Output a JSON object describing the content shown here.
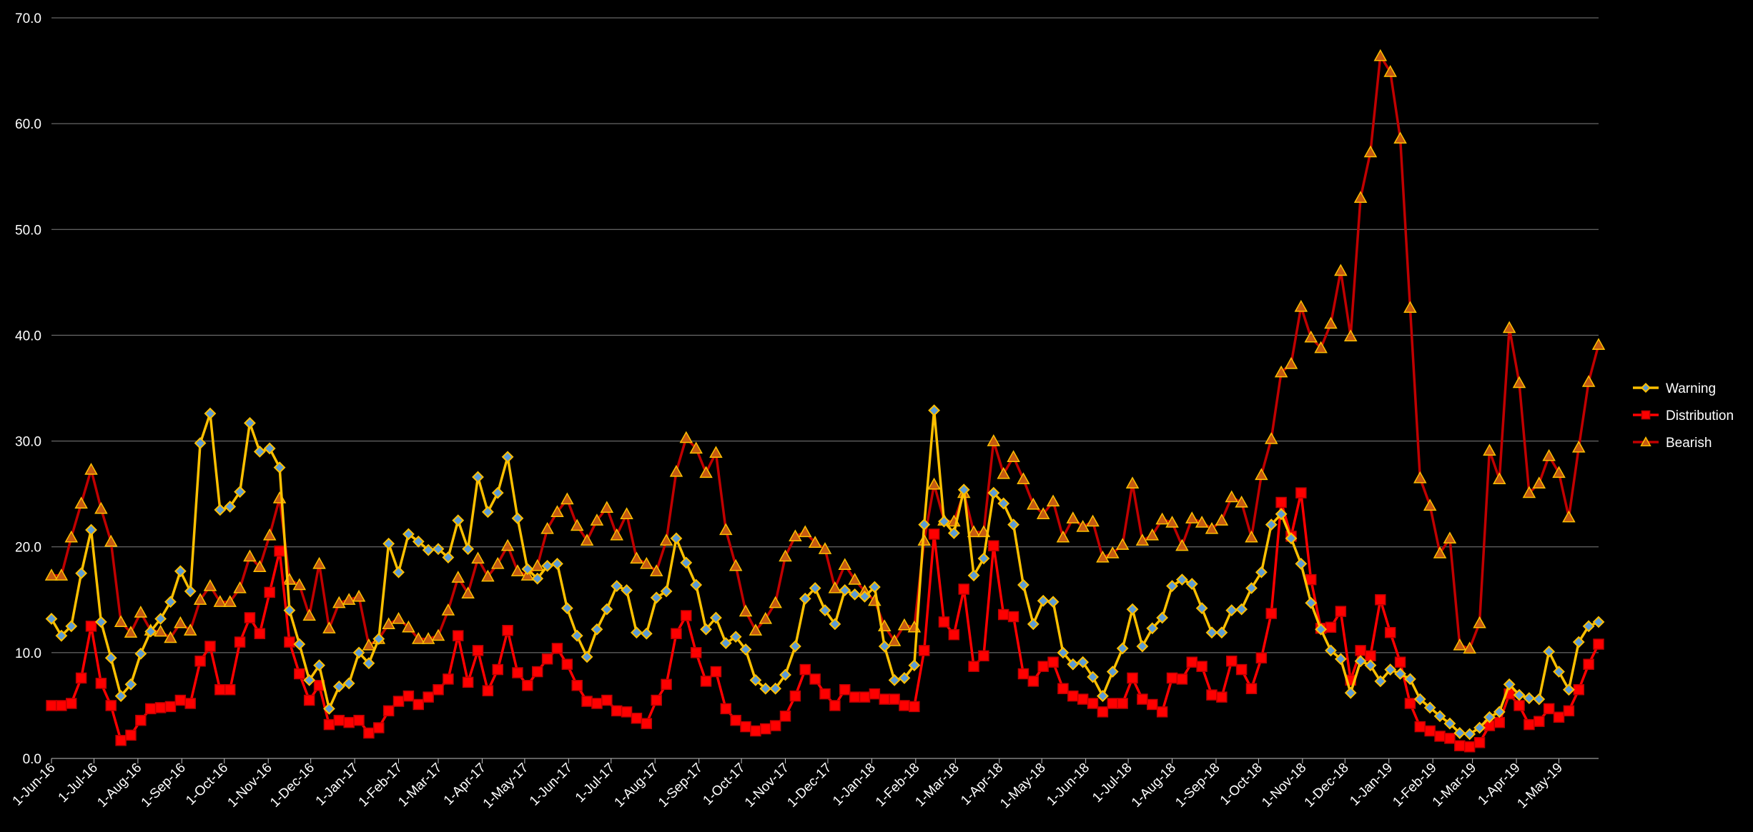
{
  "chart_data": {
    "type": "line",
    "title": "",
    "xlabel": "",
    "ylabel": "",
    "ylim": [
      0,
      70
    ],
    "ytick_labels": [
      "0.0",
      "10.0",
      "20.0",
      "30.0",
      "40.0",
      "50.0",
      "60.0",
      "70.0"
    ],
    "grid": "horizontal",
    "legend_placement": "right",
    "x_start": "2016-06-01",
    "x_step_days": 7,
    "xtick_labels": [
      "1-Jun-16",
      "1-Jul-16",
      "1-Aug-16",
      "1-Sep-16",
      "1-Oct-16",
      "1-Nov-16",
      "1-Dec-16",
      "1-Jan-17",
      "1-Feb-17",
      "1-Mar-17",
      "1-Apr-17",
      "1-May-17",
      "1-Jun-17",
      "1-Jul-17",
      "1-Aug-17",
      "1-Sep-17",
      "1-Oct-17",
      "1-Nov-17",
      "1-Dec-17",
      "1-Jan-18",
      "1-Feb-18",
      "1-Mar-18",
      "1-Apr-18",
      "1-May-18",
      "1-Jun-18",
      "1-Jul-18",
      "1-Aug-18",
      "1-Sep-18",
      "1-Oct-18",
      "1-Nov-18",
      "1-Dec-18",
      "1-Jan-19",
      "1-Feb-19",
      "1-Mar-19",
      "1-Apr-19",
      "1-May-19"
    ],
    "series": [
      {
        "name": "Warning",
        "color": "#ffc000",
        "marker": "diamond",
        "marker_fill": "#5b9bd5",
        "values": [
          13.2,
          11.6,
          12.5,
          17.5,
          21.6,
          12.9,
          9.5,
          5.9,
          7.0,
          9.9,
          12.0,
          13.2,
          14.8,
          17.7,
          15.8,
          29.8,
          32.6,
          23.5,
          23.8,
          25.2,
          31.7,
          29.0,
          29.3,
          27.5,
          14.0,
          10.8,
          7.4,
          8.8,
          4.7,
          6.8,
          7.1,
          10.0,
          9.0,
          11.3,
          20.3,
          17.6,
          21.2,
          20.5,
          19.7,
          19.8,
          19.0,
          22.5,
          19.8,
          26.6,
          23.3,
          25.1,
          28.5,
          22.7,
          17.9,
          17.0,
          18.2,
          18.4,
          14.2,
          11.6,
          9.6,
          12.2,
          14.1,
          16.3,
          15.9,
          11.9,
          11.8,
          15.2,
          15.8,
          20.8,
          18.5,
          16.4,
          12.2,
          13.3,
          10.9,
          11.5,
          10.3,
          7.4,
          6.6,
          6.6,
          7.9,
          10.6,
          15.1,
          16.1,
          14.0,
          12.7,
          15.9,
          15.5,
          15.3,
          16.2,
          10.6,
          7.4,
          7.6,
          8.8,
          22.1,
          32.9,
          22.4,
          21.3,
          25.4,
          17.3,
          18.9,
          25.1,
          24.1,
          22.1,
          16.4,
          12.7,
          14.9,
          14.8,
          10.0,
          8.9,
          9.1,
          7.7,
          5.9,
          8.2,
          10.4,
          14.1,
          10.6,
          12.3,
          13.3,
          16.3,
          16.9,
          16.5,
          14.2,
          11.9,
          11.9,
          14.0,
          14.1,
          16.1,
          17.6,
          22.1,
          23.1,
          20.8,
          18.4,
          14.7,
          12.2,
          10.2,
          9.4,
          6.2,
          9.2,
          8.8,
          7.3,
          8.4,
          8.0,
          7.5,
          5.6,
          4.8,
          4.0,
          3.3,
          2.4,
          2.3,
          2.9,
          3.9,
          4.4,
          7.0,
          6.0,
          5.7,
          5.6,
          10.1,
          8.2,
          6.5,
          11.0,
          12.5,
          12.9
        ]
      },
      {
        "name": "Distribution",
        "color": "#ff0000",
        "marker": "square",
        "marker_fill": "#ff0000",
        "values": [
          5.0,
          5.0,
          5.2,
          7.6,
          12.5,
          7.1,
          5.0,
          1.7,
          2.2,
          3.6,
          4.7,
          4.8,
          4.9,
          5.5,
          5.2,
          9.2,
          10.6,
          6.5,
          6.5,
          11.0,
          13.3,
          11.8,
          15.7,
          19.6,
          11.0,
          8.0,
          5.5,
          6.9,
          3.2,
          3.6,
          3.4,
          3.6,
          2.4,
          2.9,
          4.5,
          5.4,
          5.9,
          5.1,
          5.8,
          6.5,
          7.5,
          11.6,
          7.2,
          10.2,
          6.4,
          8.4,
          12.1,
          8.1,
          6.9,
          8.2,
          9.4,
          10.4,
          8.9,
          6.9,
          5.4,
          5.2,
          5.5,
          4.5,
          4.4,
          3.8,
          3.3,
          5.5,
          7.0,
          11.8,
          13.5,
          10.0,
          7.3,
          8.2,
          4.7,
          3.6,
          3.0,
          2.6,
          2.8,
          3.1,
          4.0,
          5.9,
          8.4,
          7.5,
          6.1,
          5.0,
          6.5,
          5.8,
          5.8,
          6.1,
          5.6,
          5.6,
          5.0,
          4.9,
          10.2,
          21.2,
          12.9,
          11.7,
          16.0,
          8.7,
          9.7,
          20.1,
          13.6,
          13.4,
          8.0,
          7.3,
          8.7,
          9.1,
          6.6,
          5.9,
          5.6,
          5.2,
          4.4,
          5.2,
          5.2,
          7.6,
          5.6,
          5.1,
          4.4,
          7.6,
          7.5,
          9.1,
          8.7,
          6.0,
          5.8,
          9.2,
          8.4,
          6.6,
          9.5,
          13.7,
          24.2,
          21.0,
          25.1,
          16.9,
          12.3,
          12.4,
          13.9,
          7.4,
          10.2,
          9.7,
          15.0,
          11.9,
          9.1,
          5.2,
          3.0,
          2.6,
          2.1,
          1.9,
          1.2,
          1.1,
          1.5,
          3.1,
          3.4,
          6.1,
          5.0,
          3.2,
          3.5,
          4.7,
          3.9,
          4.5,
          6.5,
          8.9,
          10.8
        ]
      },
      {
        "name": "Bearish",
        "color": "#c00000",
        "marker": "triangle",
        "marker_fill": "#c55a11",
        "values": [
          17.3,
          17.3,
          20.9,
          24.1,
          27.3,
          23.6,
          20.5,
          12.9,
          11.9,
          13.8,
          12.1,
          12.0,
          11.4,
          12.8,
          12.1,
          15.0,
          16.3,
          14.8,
          14.8,
          16.1,
          19.1,
          18.1,
          21.1,
          24.6,
          16.9,
          16.4,
          13.5,
          18.4,
          12.3,
          14.7,
          15.0,
          15.3,
          10.7,
          11.3,
          12.7,
          13.2,
          12.4,
          11.3,
          11.3,
          11.6,
          14.0,
          17.1,
          15.6,
          18.9,
          17.2,
          18.4,
          20.1,
          17.7,
          17.3,
          18.2,
          21.7,
          23.3,
          24.5,
          22.0,
          20.6,
          22.5,
          23.7,
          21.1,
          23.1,
          18.9,
          18.4,
          17.7,
          20.6,
          27.1,
          30.3,
          29.3,
          27.0,
          28.9,
          21.6,
          18.2,
          13.9,
          12.1,
          13.2,
          14.7,
          19.1,
          21.0,
          21.4,
          20.4,
          19.8,
          16.1,
          18.3,
          16.9,
          15.8,
          14.9,
          12.5,
          11.1,
          12.6,
          12.4,
          20.6,
          25.9,
          22.5,
          22.4,
          25.1,
          21.4,
          21.4,
          30.0,
          26.9,
          28.5,
          26.4,
          24.0,
          23.1,
          24.3,
          20.9,
          22.7,
          21.9,
          22.4,
          19.0,
          19.4,
          20.2,
          26.0,
          20.6,
          21.1,
          22.6,
          22.3,
          20.1,
          22.7,
          22.3,
          21.7,
          22.5,
          24.7,
          24.2,
          20.9,
          26.8,
          30.2,
          36.5,
          37.3,
          42.7,
          39.8,
          38.8,
          41.1,
          46.1,
          39.9,
          53.0,
          57.3,
          66.4,
          64.9,
          58.6,
          42.6,
          26.5,
          23.9,
          19.4,
          20.8,
          10.7,
          10.4,
          12.8,
          29.1,
          26.4,
          40.7,
          35.5,
          25.1,
          26.0,
          28.6,
          27.0,
          22.8,
          29.4,
          35.6,
          39.1
        ]
      }
    ]
  }
}
